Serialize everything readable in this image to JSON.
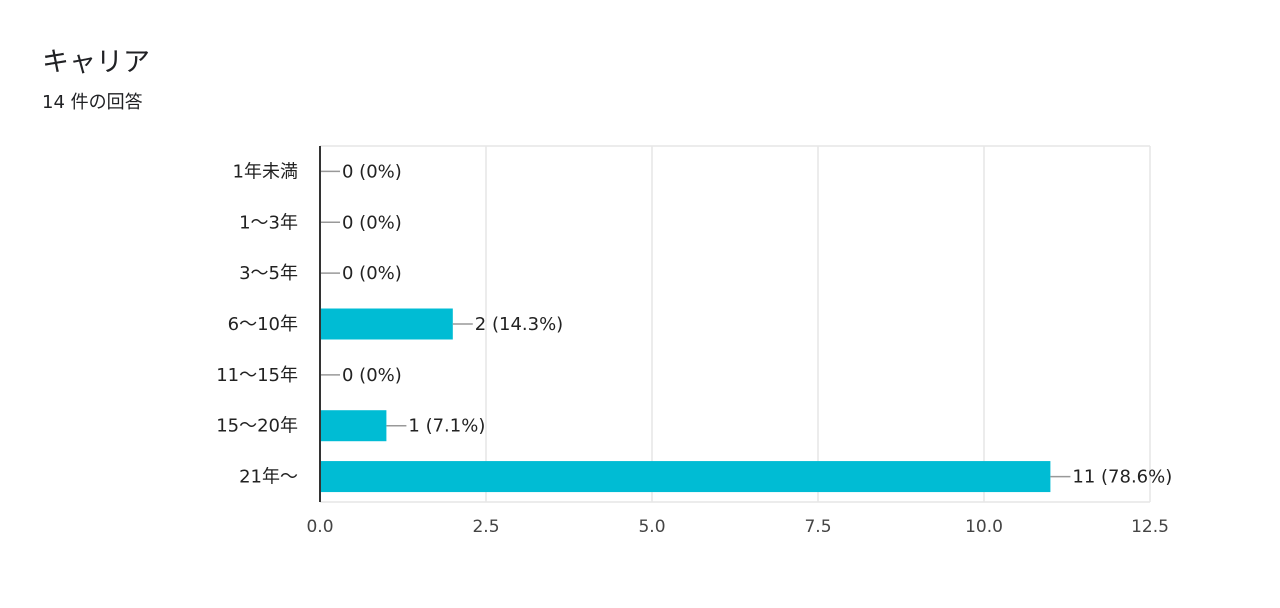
{
  "header": {
    "title": "キャリア",
    "subtitle": "14 件の回答"
  },
  "chart_data": {
    "type": "bar",
    "orientation": "horizontal",
    "categories": [
      "1年未満",
      "1〜3年",
      "3〜5年",
      "6〜10年",
      "11〜15年",
      "15〜20年",
      "21年〜"
    ],
    "values": [
      0,
      0,
      0,
      2,
      0,
      1,
      11
    ],
    "value_labels": [
      "0 (0%)",
      "0 (0%)",
      "0 (0%)",
      "2 (14.3%)",
      "0 (0%)",
      "1 (7.1%)",
      "11 (78.6%)"
    ],
    "xlim": [
      0,
      12.5
    ],
    "xticks": [
      "0.0",
      "2.5",
      "5.0",
      "7.5",
      "10.0",
      "12.5"
    ],
    "xtick_values": [
      0,
      2.5,
      5,
      7.5,
      10,
      12.5
    ],
    "grid": true,
    "bar_color": "#00bcd4",
    "grid_color": "#e6e6e6",
    "axis_color": "#333333",
    "leader_color": "#999999"
  }
}
